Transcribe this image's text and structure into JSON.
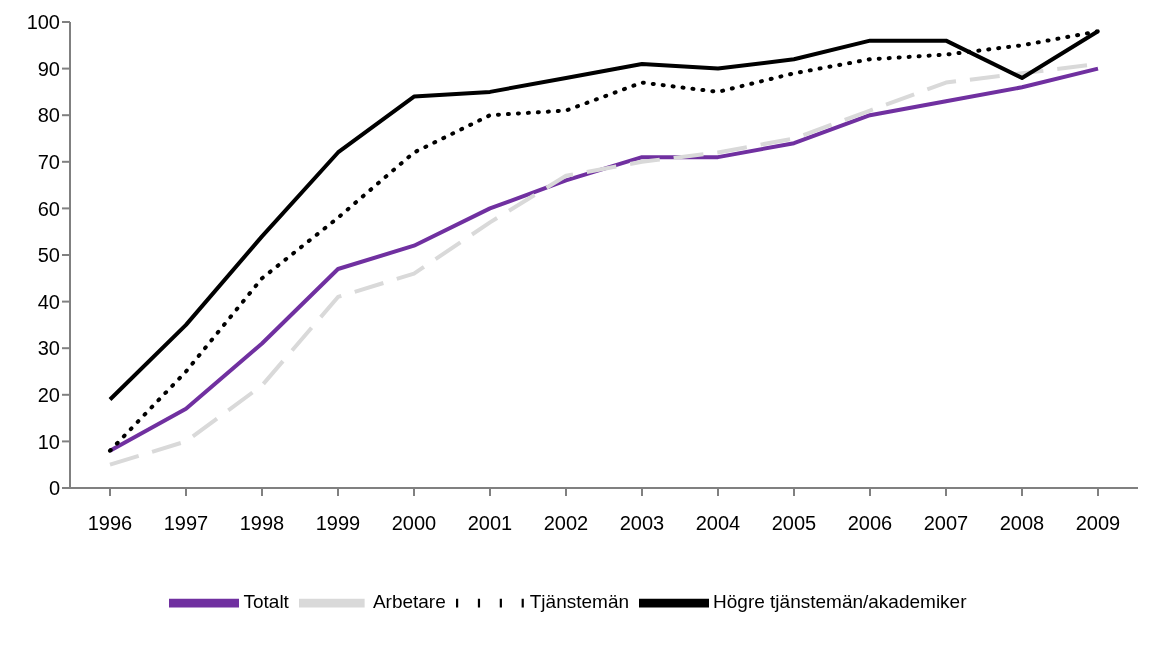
{
  "chart_data": {
    "type": "line",
    "categories": [
      "1996",
      "1997",
      "1998",
      "1999",
      "2000",
      "2001",
      "2002",
      "2003",
      "2004",
      "2005",
      "2006",
      "2007",
      "2008",
      "2009"
    ],
    "series": [
      {
        "name": "Totalt",
        "color": "#7030a0",
        "line_style": "solid",
        "values": [
          8,
          17,
          31,
          47,
          52,
          60,
          66,
          71,
          71,
          74,
          80,
          83,
          86,
          90
        ]
      },
      {
        "name": "Arbetare",
        "color": "#d9d9d9",
        "line_style": "dashed",
        "values": [
          5,
          10,
          22,
          41,
          46,
          57,
          67,
          70,
          72,
          75,
          81,
          87,
          89,
          91
        ]
      },
      {
        "name": "Tjänstemän",
        "color": "#000000",
        "line_style": "dotted",
        "values": [
          8,
          25,
          45,
          58,
          72,
          80,
          81,
          87,
          85,
          89,
          92,
          93,
          95,
          98
        ]
      },
      {
        "name": "Högre tjänstemän/akademiker",
        "color": "#000000",
        "line_style": "solid",
        "values": [
          19,
          35,
          54,
          72,
          84,
          85,
          88,
          91,
          90,
          92,
          96,
          96,
          88,
          98
        ]
      }
    ],
    "ylim": [
      0,
      100
    ],
    "yticks": [
      0,
      10,
      20,
      30,
      40,
      50,
      60,
      70,
      80,
      90,
      100
    ],
    "grid": false,
    "legend": "bottom",
    "marker": "none"
  }
}
